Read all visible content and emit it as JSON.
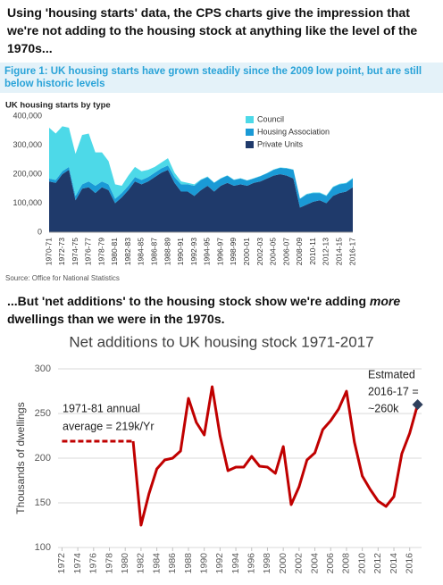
{
  "intro": "Using 'housing starts' data, the CPS charts give the impression that we're not adding to the housing stock at anything like the level of the 1970s...",
  "caption": "Figure 1: UK housing starts have grown steadily since the 2009 low point, but are still below historic levels",
  "source": "Source: Office for National Statistics",
  "followup": {
    "before": "...But 'net additions' to the housing stock show we're adding ",
    "emphasis": "more",
    "after": " dwellings than we were in the 1970s."
  },
  "chart_data": [
    {
      "type": "area",
      "stacked": true,
      "title": "UK housing starts by type",
      "categories": [
        "1970-71",
        null,
        "1972-73",
        null,
        "1974-75",
        null,
        "1976-77",
        null,
        "1978-79",
        null,
        "1980-81",
        null,
        "1982-83",
        null,
        "1984-85",
        null,
        "1986-87",
        null,
        "1988-89",
        null,
        "1990-91",
        null,
        "1992-93",
        null,
        "1994-95",
        null,
        "1996-97",
        null,
        "1998-99",
        null,
        "2000-01",
        null,
        "2002-03",
        null,
        "2004-05",
        null,
        "2006-07",
        null,
        "2008-09",
        null,
        "2010-11",
        null,
        "2012-13",
        null,
        "2014-15",
        null,
        "2016-17"
      ],
      "series": [
        {
          "name": "Private Units",
          "color": "#1f3a6b",
          "values": [
            175000,
            170000,
            200000,
            215000,
            110000,
            150000,
            155000,
            135000,
            155000,
            145000,
            100000,
            120000,
            145000,
            175000,
            165000,
            175000,
            190000,
            205000,
            215000,
            170000,
            140000,
            140000,
            125000,
            145000,
            160000,
            140000,
            160000,
            170000,
            160000,
            165000,
            160000,
            170000,
            175000,
            185000,
            195000,
            200000,
            195000,
            185000,
            85000,
            95000,
            105000,
            110000,
            100000,
            125000,
            135000,
            140000,
            155000
          ]
        },
        {
          "name": "Housing Association",
          "color": "#1a9ad6",
          "values": [
            10000,
            10000,
            10000,
            10000,
            15000,
            15000,
            20000,
            25000,
            20000,
            20000,
            15000,
            15000,
            15000,
            15000,
            15000,
            15000,
            15000,
            15000,
            15000,
            20000,
            25000,
            25000,
            35000,
            35000,
            30000,
            30000,
            25000,
            25000,
            20000,
            20000,
            18000,
            15000,
            18000,
            18000,
            20000,
            22000,
            25000,
            30000,
            30000,
            35000,
            30000,
            25000,
            25000,
            30000,
            30000,
            28000,
            30000
          ]
        },
        {
          "name": "Council",
          "color": "#4dd9e8",
          "values": [
            175000,
            160000,
            155000,
            135000,
            145000,
            170000,
            165000,
            115000,
            100000,
            80000,
            50000,
            25000,
            35000,
            35000,
            30000,
            25000,
            20000,
            20000,
            25000,
            15000,
            10000,
            5000,
            5000,
            2000,
            2000,
            1000,
            1000,
            1000,
            1000,
            1000,
            1000,
            1000,
            1000,
            1000,
            1000,
            1000,
            1000,
            1000,
            1000,
            2000,
            2000,
            2000,
            2000,
            2000,
            2000,
            2000,
            2000
          ]
        }
      ],
      "ylim": [
        0,
        400000
      ],
      "yticks": [
        0,
        {
          "value": 100000,
          "label": "100,000"
        },
        {
          "value": 200000,
          "label": "200,000"
        },
        {
          "value": 300000,
          "label": "300,000"
        },
        {
          "value": 400000,
          "label": "400,000"
        }
      ],
      "legend": "top-right"
    },
    {
      "type": "line",
      "title": "Net additions to UK housing stock 1971-2017",
      "y_label": "Thousands of dwellings",
      "x": [
        1972,
        1973,
        1974,
        1975,
        1976,
        1977,
        1978,
        1979,
        1980,
        1981,
        1982,
        1983,
        1984,
        1985,
        1986,
        1987,
        1988,
        1989,
        1990,
        1991,
        1992,
        1993,
        1994,
        1995,
        1996,
        1997,
        1998,
        1999,
        2000,
        2001,
        2002,
        2003,
        2004,
        2005,
        2006,
        2007,
        2008,
        2009,
        2010,
        2011,
        2012,
        2013,
        2014,
        2015,
        2016,
        2017
      ],
      "series": [
        {
          "color": "#c00000",
          "values": [
            null,
            null,
            null,
            null,
            null,
            null,
            null,
            null,
            null,
            219,
            125,
            160,
            188,
            198,
            200,
            208,
            267,
            240,
            226,
            280,
            225,
            186,
            190,
            190,
            202,
            191,
            190,
            183,
            213,
            148,
            168,
            198,
            206,
            232,
            242,
            255,
            275,
            218,
            180,
            165,
            152,
            146,
            157,
            205,
            228,
            260
          ]
        },
        {
          "color": "#c00000",
          "dashed": true,
          "values": [
            219,
            219,
            219,
            219,
            219,
            219,
            219,
            219,
            219,
            219,
            null,
            null,
            null,
            null,
            null,
            null,
            null,
            null,
            null,
            null,
            null,
            null,
            null,
            null,
            null,
            null,
            null,
            null,
            null,
            null,
            null,
            null,
            null,
            null,
            null,
            null,
            null,
            null,
            null,
            null,
            null,
            null,
            null,
            null,
            null,
            null
          ]
        }
      ],
      "highlight_color": "#2e3f5c",
      "xlim": [
        1971.5,
        2017.5
      ],
      "xticks": [
        1972,
        1974,
        1976,
        1978,
        1980,
        1982,
        1984,
        1986,
        1988,
        1990,
        1992,
        1994,
        1996,
        1998,
        2000,
        2002,
        2004,
        2006,
        2008,
        2010,
        2012,
        2014,
        2016
      ],
      "ylim": [
        100,
        300
      ],
      "yticks": [
        100,
        150,
        200,
        250,
        300
      ],
      "grid": true,
      "annotations": [
        [
          "1971-81 annual",
          "average = 219k/Yr"
        ],
        [
          "Estmated",
          "2016-17 =",
          "~260k"
        ]
      ]
    }
  ]
}
